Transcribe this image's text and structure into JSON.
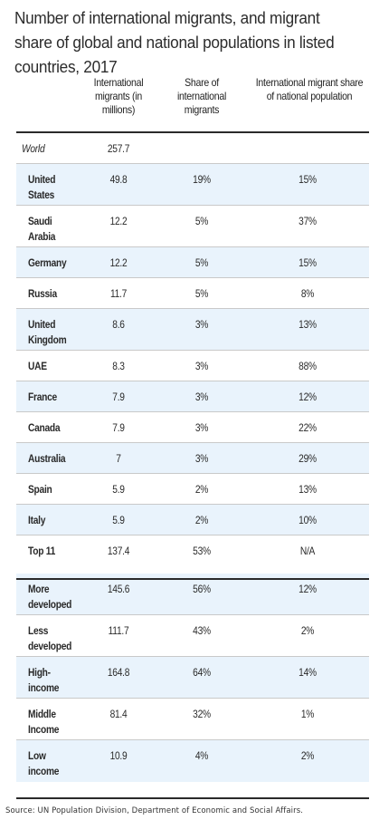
{
  "chart_data": {
    "type": "table",
    "title": "Number of international migrants, and migrant share of global and national populations in listed countries, 2017",
    "columns": [
      "",
      "International migrants (in millions)",
      "Share of international migrants",
      "International migrant share of national population"
    ],
    "rows": [
      {
        "country": "World",
        "migrants": "257.7",
        "share": "",
        "national": ""
      },
      {
        "country": "United States",
        "migrants": "49.8",
        "share": "19%",
        "national": "15%"
      },
      {
        "country": "Saudi Arabia",
        "migrants": "12.2",
        "share": "5%",
        "national": "37%"
      },
      {
        "country": "Germany",
        "migrants": "12.2",
        "share": "5%",
        "national": "15%"
      },
      {
        "country": "Russia",
        "migrants": "11.7",
        "share": "5%",
        "national": "8%"
      },
      {
        "country": "United Kingdom",
        "migrants": "8.6",
        "share": "3%",
        "national": "13%"
      },
      {
        "country": "UAE",
        "migrants": "8.3",
        "share": "3%",
        "national": "88%"
      },
      {
        "country": "France",
        "migrants": "7.9",
        "share": "3%",
        "national": "12%"
      },
      {
        "country": "Canada",
        "migrants": "7.9",
        "share": "3%",
        "national": "22%"
      },
      {
        "country": "Australia",
        "migrants": "7",
        "share": "3%",
        "national": "29%"
      },
      {
        "country": "Spain",
        "migrants": "5.9",
        "share": "2%",
        "national": "13%"
      },
      {
        "country": "Italy",
        "migrants": "5.9",
        "share": "2%",
        "national": "10%"
      },
      {
        "country": "Top 11",
        "migrants": "137.4",
        "share": "53%",
        "national": "N/A"
      },
      {
        "country": "More developed",
        "migrants": "145.6",
        "share": "56%",
        "national": "12%"
      },
      {
        "country": "Less developed",
        "migrants": "111.7",
        "share": "43%",
        "national": "2%"
      },
      {
        "country": "High-income",
        "migrants": "164.8",
        "share": "64%",
        "national": "14%"
      },
      {
        "country": "Middle Income",
        "migrants": "81.4",
        "share": "32%",
        "national": "1%"
      },
      {
        "country": "Low income",
        "migrants": "10.9",
        "share": "4%",
        "national": "2%"
      }
    ],
    "source": "Source: UN Population Division, Department of Economic and Social Affairs."
  }
}
